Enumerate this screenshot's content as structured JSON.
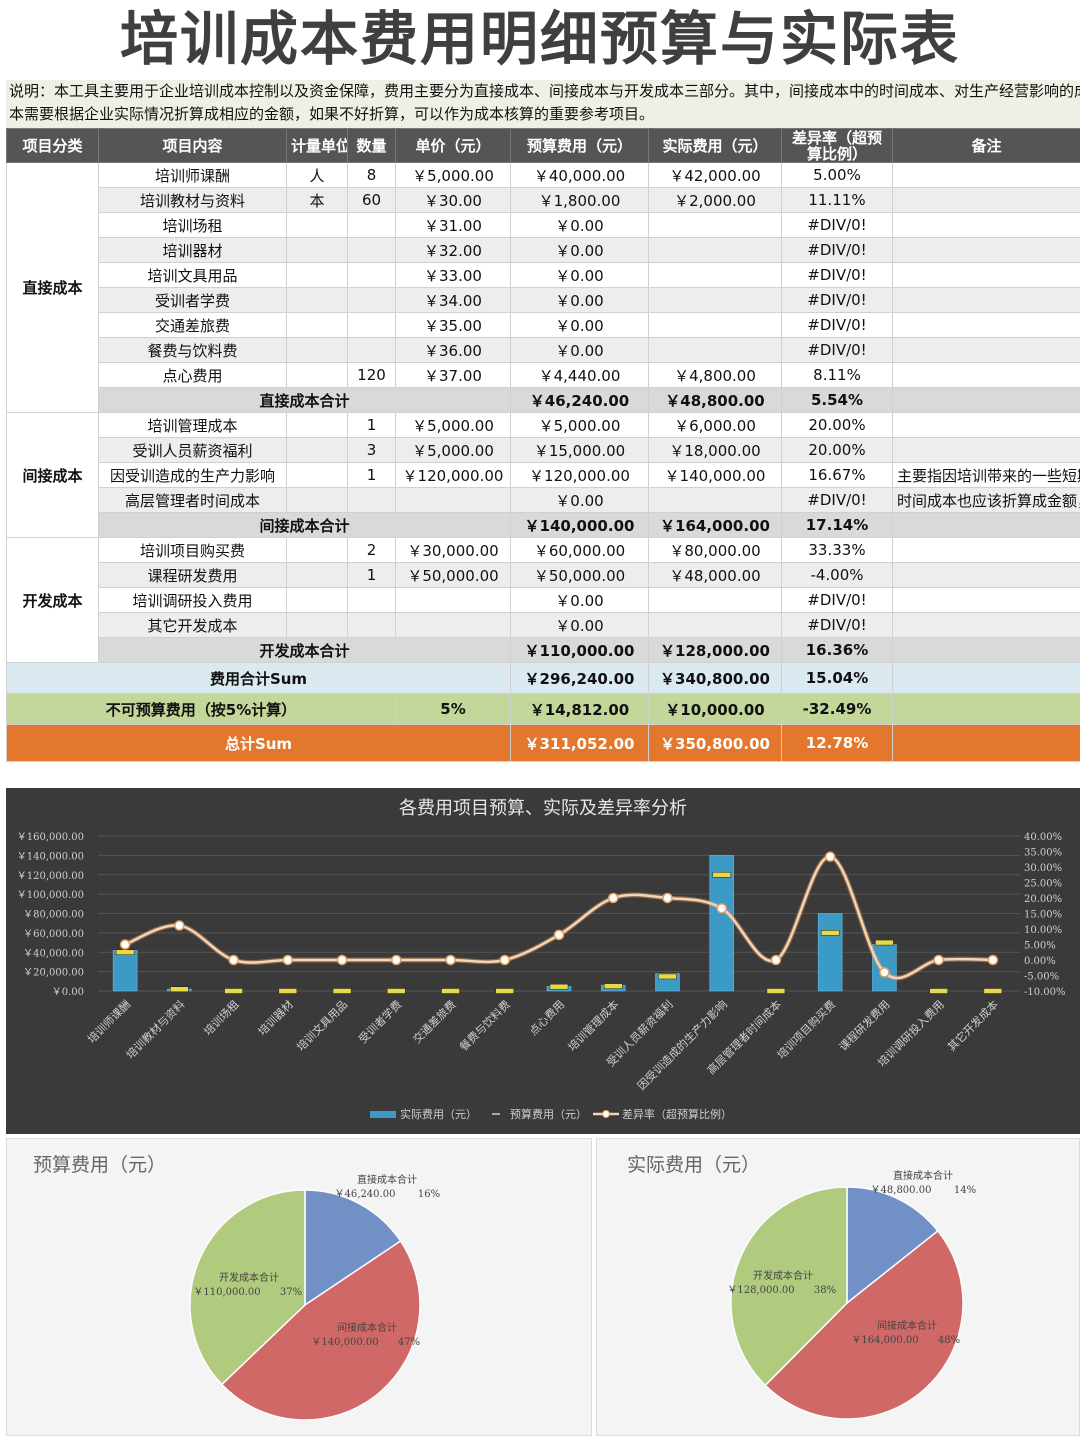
{
  "title": "培训成本费用明细预算与实际表",
  "description": [
    "说明：本工具主要用于企业培训成本控制以及资金保障，费用主要分为直接成本、间接成本与开发成本三部分。其中，间接成本中的时间成本、对生产经营影响的成",
    "本需要根据企业实际情况折算成相应的金额，如果不好折算，可以作为成本核算的重要参考项目。"
  ],
  "headers": [
    "项目分类",
    "项目内容",
    "计量单位",
    "数量",
    "单价（元）",
    "预算费用（元）",
    "实际费用（元）",
    "差异率（超预算比例）",
    "备注"
  ],
  "groups": [
    {
      "category": "直接成本",
      "rows": [
        {
          "item": "培训师课酬",
          "unit": "人",
          "qty": "8",
          "price": "￥5,000.00",
          "budget": "￥40,000.00",
          "actual": "￥42,000.00",
          "rate": "5.00%",
          "note": ""
        },
        {
          "item": "培训教材与资料",
          "unit": "本",
          "qty": "60",
          "price": "￥30.00",
          "budget": "￥1,800.00",
          "actual": "￥2,000.00",
          "rate": "11.11%",
          "note": ""
        },
        {
          "item": "培训场租",
          "unit": "",
          "qty": "",
          "price": "￥31.00",
          "budget": "￥0.00",
          "actual": "",
          "rate": "#DIV/0!",
          "note": ""
        },
        {
          "item": "培训器材",
          "unit": "",
          "qty": "",
          "price": "￥32.00",
          "budget": "￥0.00",
          "actual": "",
          "rate": "#DIV/0!",
          "note": ""
        },
        {
          "item": "培训文具用品",
          "unit": "",
          "qty": "",
          "price": "￥33.00",
          "budget": "￥0.00",
          "actual": "",
          "rate": "#DIV/0!",
          "note": ""
        },
        {
          "item": "受训者学费",
          "unit": "",
          "qty": "",
          "price": "￥34.00",
          "budget": "￥0.00",
          "actual": "",
          "rate": "#DIV/0!",
          "note": ""
        },
        {
          "item": "交通差旅费",
          "unit": "",
          "qty": "",
          "price": "￥35.00",
          "budget": "￥0.00",
          "actual": "",
          "rate": "#DIV/0!",
          "note": ""
        },
        {
          "item": "餐费与饮料费",
          "unit": "",
          "qty": "",
          "price": "￥36.00",
          "budget": "￥0.00",
          "actual": "",
          "rate": "#DIV/0!",
          "note": ""
        },
        {
          "item": "点心费用",
          "unit": "",
          "qty": "120",
          "price": "￥37.00",
          "budget": "￥4,440.00",
          "actual": "￥4,800.00",
          "rate": "8.11%",
          "note": ""
        }
      ],
      "subtotal": {
        "label": "直接成本合计",
        "budget": "￥46,240.00",
        "actual": "￥48,800.00",
        "rate": "5.54%"
      }
    },
    {
      "category": "间接成本",
      "rows": [
        {
          "item": "培训管理成本",
          "unit": "",
          "qty": "1",
          "price": "￥5,000.00",
          "budget": "￥5,000.00",
          "actual": "￥6,000.00",
          "rate": "20.00%",
          "note": ""
        },
        {
          "item": "受训人员薪资福利",
          "unit": "",
          "qty": "3",
          "price": "￥5,000.00",
          "budget": "￥15,000.00",
          "actual": "￥18,000.00",
          "rate": "20.00%",
          "note": ""
        },
        {
          "item": "因受训造成的生产力影响",
          "unit": "",
          "qty": "1",
          "price": "￥120,000.00",
          "budget": "￥120,000.00",
          "actual": "￥140,000.00",
          "rate": "16.67%",
          "note": "主要指因培训带来的一些短期"
        },
        {
          "item": "高层管理者时间成本",
          "unit": "",
          "qty": "",
          "price": "",
          "budget": "￥0.00",
          "actual": "",
          "rate": "#DIV/0!",
          "note": "时间成本也应该折算成金额，"
        }
      ],
      "subtotal": {
        "label": "间接成本合计",
        "budget": "￥140,000.00",
        "actual": "￥164,000.00",
        "rate": "17.14%"
      }
    },
    {
      "category": "开发成本",
      "rows": [
        {
          "item": "培训项目购买费",
          "unit": "",
          "qty": "2",
          "price": "￥30,000.00",
          "budget": "￥60,000.00",
          "actual": "￥80,000.00",
          "rate": "33.33%",
          "note": ""
        },
        {
          "item": "课程研发费用",
          "unit": "",
          "qty": "1",
          "price": "￥50,000.00",
          "budget": "￥50,000.00",
          "actual": "￥48,000.00",
          "rate": "-4.00%",
          "note": ""
        },
        {
          "item": "培训调研投入费用",
          "unit": "",
          "qty": "",
          "price": "",
          "budget": "￥0.00",
          "actual": "",
          "rate": "#DIV/0!",
          "note": ""
        },
        {
          "item": "其它开发成本",
          "unit": "",
          "qty": "",
          "price": "",
          "budget": "￥0.00",
          "actual": "",
          "rate": "#DIV/0!",
          "note": ""
        }
      ],
      "subtotal": {
        "label": "开发成本合计",
        "budget": "￥110,000.00",
        "actual": "￥128,000.00",
        "rate": "16.36%"
      }
    }
  ],
  "sum_row": {
    "label": "费用合计Sum",
    "budget": "￥296,240.00",
    "actual": "￥340,800.00",
    "rate": "15.04%"
  },
  "unbudget_row": {
    "label": "不可预算费用（按5%计算）",
    "pct": "5%",
    "budget": "￥14,812.00",
    "actual": "￥10,000.00",
    "rate": "-32.49%"
  },
  "total_row": {
    "label": "总计Sum",
    "budget": "￥311,052.00",
    "actual": "￥350,800.00",
    "rate": "12.78%"
  },
  "colors": {
    "header": "#555555",
    "subtotal": "#d9d9d9",
    "sum": "#dbe9f1",
    "unbudget": "#c4d79b",
    "total": "#e2772d",
    "bar": "#3c9bc6",
    "line": "#f6d5b5",
    "budget_marker": "#e8d94a"
  },
  "chart_data": [
    {
      "type": "bar",
      "title": "各费用项目预算、实际及差异率分析",
      "categories": [
        "培训师课酬",
        "培训教材与资料",
        "培训场租",
        "培训器材",
        "培训文具用品",
        "受训者学费",
        "交通差旅费",
        "餐费与饮料费",
        "点心费用",
        "培训管理成本",
        "受训人员薪资福利",
        "因受训造成的生产力影响",
        "高层管理者时间成本",
        "培训项目购买费",
        "课程研发费用",
        "培训调研投入费用",
        "其它开发成本"
      ],
      "series": [
        {
          "name": "实际费用（元）",
          "kind": "bar",
          "axis": "left",
          "values": [
            42000,
            2000,
            0,
            0,
            0,
            0,
            0,
            0,
            4800,
            6000,
            18000,
            140000,
            0,
            80000,
            48000,
            0,
            0
          ]
        },
        {
          "name": "预算费用（元）",
          "kind": "marker",
          "axis": "left",
          "values": [
            40000,
            1800,
            0,
            0,
            0,
            0,
            0,
            0,
            4440,
            5000,
            15000,
            120000,
            0,
            60000,
            50000,
            0,
            0
          ]
        },
        {
          "name": "差异率（超预算比例）",
          "kind": "line",
          "axis": "right",
          "values": [
            5.0,
            11.11,
            0,
            0,
            0,
            0,
            0,
            0,
            8.11,
            20.0,
            20.0,
            16.67,
            0,
            33.33,
            -4.0,
            0,
            0
          ]
        }
      ],
      "ylim": [
        0,
        160000
      ],
      "y_ticks": [
        "￥0.00",
        "￥20,000.00",
        "￥40,000.00",
        "￥60,000.00",
        "￥80,000.00",
        "￥100,000.00",
        "￥120,000.00",
        "￥140,000.00",
        "￥160,000.00"
      ],
      "y2lim": [
        -10,
        40
      ],
      "y2_ticks": [
        "-10.00%",
        "-5.00%",
        "0.00%",
        "5.00%",
        "10.00%",
        "15.00%",
        "20.00%",
        "25.00%",
        "30.00%",
        "35.00%",
        "40.00%"
      ],
      "legend": "bottom"
    },
    {
      "type": "pie",
      "title": "预算费用（元）",
      "labels": [
        "直接成本合计",
        "间接成本合计",
        "开发成本合计"
      ],
      "values": [
        46240,
        140000,
        110000
      ],
      "value_labels": [
        "￥46,240.00",
        "￥140,000.00",
        "￥110,000.00"
      ],
      "percent_labels": [
        "16%",
        "47%",
        "37%"
      ],
      "colors": [
        "#5b7fbf",
        "#c9504f",
        "#a6c46a"
      ]
    },
    {
      "type": "pie",
      "title": "实际费用（元）",
      "labels": [
        "直接成本合计",
        "间接成本合计",
        "开发成本合计"
      ],
      "values": [
        48800,
        164000,
        128000
      ],
      "value_labels": [
        "￥48,800.00",
        "￥164,000.00",
        "￥128,000.00"
      ],
      "percent_labels": [
        "14%",
        "48%",
        "38%"
      ],
      "colors": [
        "#5b7fbf",
        "#c9504f",
        "#a6c46a"
      ]
    }
  ]
}
